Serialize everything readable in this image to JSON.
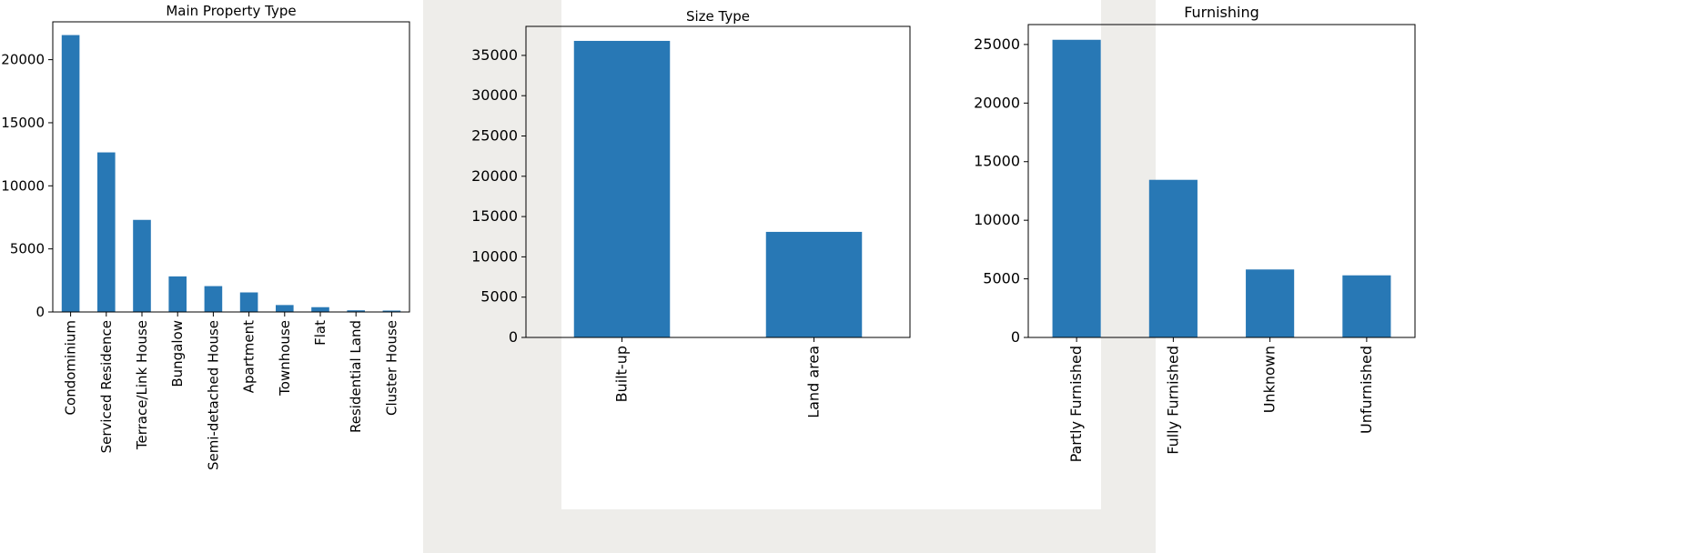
{
  "colors": {
    "bar": "#2878b5",
    "axis": "#000000"
  },
  "chart_data": [
    {
      "type": "bar",
      "title": "Main Property Type",
      "xlabel": "",
      "ylabel": "",
      "categories": [
        "Condominium",
        "Serviced Residence",
        "Terrace/Link House",
        "Bungalow",
        "Semi-detached House",
        "Apartment",
        "Townhouse",
        "Flat",
        "Residential Land",
        "Cluster House"
      ],
      "values": [
        21950,
        12650,
        7300,
        2820,
        2050,
        1550,
        550,
        380,
        130,
        110
      ],
      "ylim": [
        0,
        23000
      ],
      "yticks": [
        0,
        5000,
        10000,
        15000,
        20000
      ],
      "grid": false,
      "legend": "none"
    },
    {
      "type": "bar",
      "title": "Size Type",
      "xlabel": "",
      "ylabel": "",
      "categories": [
        "Built-up",
        "Land area"
      ],
      "values": [
        36800,
        13100
      ],
      "ylim": [
        0,
        38600
      ],
      "yticks": [
        0,
        5000,
        10000,
        15000,
        20000,
        25000,
        30000,
        35000
      ],
      "grid": false,
      "legend": "none"
    },
    {
      "type": "bar",
      "title": "Furnishing",
      "xlabel": "",
      "ylabel": "",
      "categories": [
        "Partly Furnished",
        "Fully Furnished",
        "Unknown",
        "Unfurnished"
      ],
      "values": [
        25400,
        13450,
        5800,
        5300
      ],
      "ylim": [
        0,
        26700
      ],
      "yticks": [
        0,
        5000,
        10000,
        15000,
        20000,
        25000
      ],
      "grid": false,
      "legend": "none"
    }
  ]
}
